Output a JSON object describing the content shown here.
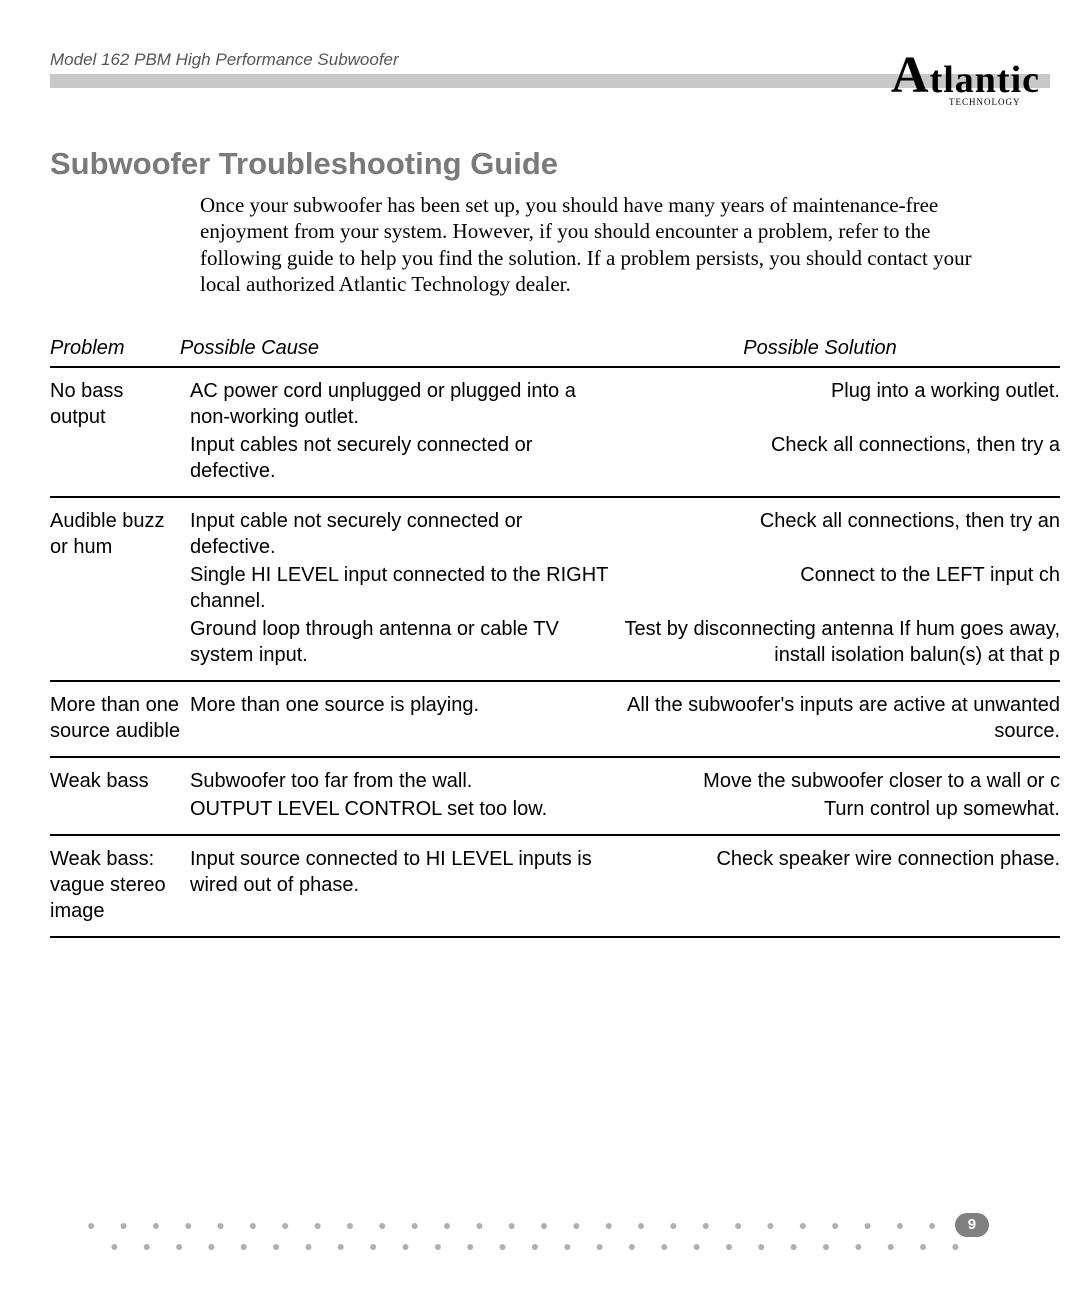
{
  "header": {
    "model_line": "Model 162 PBM High Performance Subwoofer",
    "logo_main": "Atlantic",
    "logo_sub": "TECHNOLOGY"
  },
  "section": {
    "title": "Subwoofer Troubleshooting Guide",
    "intro": "Once your subwoofer has been set up, you should have many years of maintenance-free enjoyment from your system. However, if you should encounter a problem, refer to the following guide to help you find the solution. If a problem persists, you should contact your local authorized Atlantic Technology dealer."
  },
  "columns": {
    "problem": "Problem",
    "cause": "Possible Cause",
    "solution": "Possible Solution"
  },
  "groups": [
    {
      "problem": "No bass output",
      "rows": [
        {
          "cause": "AC power cord unplugged or plugged into a non-working outlet.",
          "solution": "Plug into a working outlet."
        },
        {
          "cause": "Input cables not securely connected or defective.",
          "solution": "Check all connections, then try a"
        }
      ]
    },
    {
      "problem": "Audible buzz or hum",
      "rows": [
        {
          "cause": "Input cable not securely connected or defective.",
          "solution": "Check all connections, then try an"
        },
        {
          "cause": "Single HI LEVEL input connected to the RIGHT channel.",
          "solution": "Connect to the LEFT input ch"
        },
        {
          "cause": "Ground loop through antenna or cable TV system input.",
          "solution": "Test by disconnecting antenna If hum goes away, install isolation balun(s) at that p"
        }
      ]
    },
    {
      "problem": "More than one source audible",
      "rows": [
        {
          "cause": "More than one source is playing.",
          "solution": "All the subwoofer's inputs are active at unwanted source."
        }
      ]
    },
    {
      "problem": "Weak bass",
      "rows": [
        {
          "cause": "Subwoofer too far from the wall.",
          "solution": "Move the subwoofer closer to a wall or c"
        },
        {
          "cause": "OUTPUT LEVEL CONTROL set too low.",
          "solution": "Turn control up somewhat."
        }
      ]
    },
    {
      "problem": "Weak bass: vague stereo image",
      "rows": [
        {
          "cause": "Input source connected to HI LEVEL inputs is wired out of phase.",
          "solution": "Check speaker wire connection phase."
        }
      ]
    }
  ],
  "footer": {
    "page_number": "9",
    "dots_left": "● ● ● ● ● ● ● ● ● ● ● ● ● ● ● ● ● ● ● ● ● ● ● ● ● ● ●",
    "dots_right": "● ● ● ● ● ● ● ● ● ● ● ● ● ● ● ● ● ● ● ● ● ● ● ● ● ● ●"
  },
  "style": {
    "heading_color": "#7a7a7a",
    "bar_color": "#c8c8c8",
    "text_color": "#000000",
    "dots_color": "#b0b0b0",
    "pagenum_bg": "#808080",
    "pagenum_fg": "#ffffff",
    "body_font_size_pt": 15,
    "title_font_size_pt": 23,
    "intro_font_size_pt": 16
  }
}
